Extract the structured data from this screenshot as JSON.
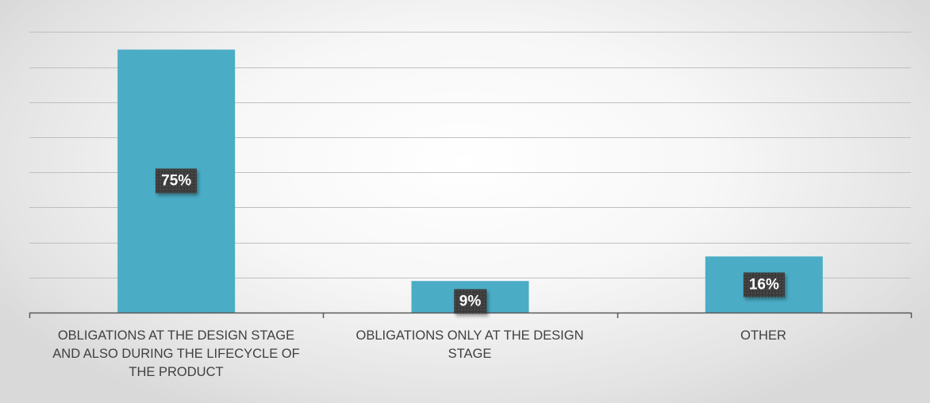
{
  "chart_data": {
    "type": "bar",
    "categories": [
      "OBLIGATIONS AT THE DESIGN STAGE AND ALSO DURING THE LIFECYCLE OF THE PRODUCT",
      "OBLIGATIONS ONLY AT THE DESIGN STAGE",
      "OTHER"
    ],
    "category_lines": [
      [
        "OBLIGATIONS AT THE DESIGN STAGE",
        "AND ALSO DURING THE LIFECYCLE OF",
        "THE PRODUCT"
      ],
      [
        "OBLIGATIONS ONLY AT THE DESIGN",
        "STAGE"
      ],
      [
        "OTHER"
      ]
    ],
    "values": [
      75,
      9,
      16
    ],
    "data_labels": [
      "75%",
      "9%",
      "16%"
    ],
    "ylim": [
      0,
      80
    ],
    "y_grid_step": 10,
    "grid": true,
    "legend": "none",
    "colors": {
      "bar": "#4BACC6",
      "grid": "#bfbfbf",
      "axis": "#595959",
      "label_bg": "#3a3a3a",
      "label_text": "#ffffff",
      "category_text": "#404040"
    }
  }
}
